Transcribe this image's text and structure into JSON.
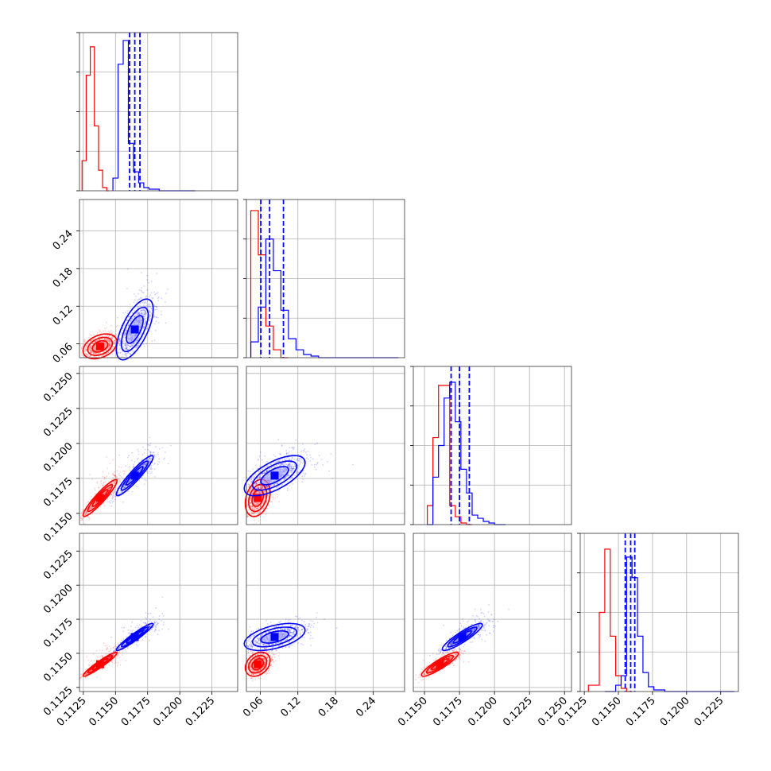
{
  "colors": {
    "red": "#ff0000",
    "blue": "#0000ff"
  },
  "chart_data": {
    "type": "corner",
    "grid": true,
    "series": [
      {
        "color": "#ff0000"
      },
      {
        "color": "#0000ff"
      }
    ],
    "params": [
      {
        "range": [
          0.1122,
          0.1245
        ],
        "ticks": [
          "0.1125",
          "0.1150",
          "0.1175",
          "0.1200",
          "0.1225"
        ],
        "tickvals": [
          0.1125,
          0.115,
          0.1175,
          0.12,
          0.1225
        ]
      },
      {
        "range": [
          0.038,
          0.29
        ],
        "ticks": [
          "0.06",
          "0.12",
          "0.18",
          "0.24"
        ],
        "tickvals": [
          0.06,
          0.12,
          0.18,
          0.24
        ]
      },
      {
        "range": [
          0.1142,
          0.1255
        ],
        "ticks": [
          "0.1150",
          "0.1175",
          "0.1200",
          "0.1225",
          "0.1250"
        ],
        "tickvals": [
          0.115,
          0.1175,
          0.12,
          0.1225,
          0.125
        ]
      },
      {
        "range": [
          0.1122,
          0.1238
        ],
        "ticks": [
          "0.1125",
          "0.1150",
          "0.1175",
          "0.1200",
          "0.1225"
        ],
        "tickvals": [
          0.1125,
          0.115,
          0.1175,
          0.12,
          0.1225
        ]
      }
    ],
    "histograms": [
      {
        "param": 0,
        "red": {
          "edges": [
            0.1124,
            0.11256,
            0.11272,
            0.11288,
            0.11304,
            0.1132,
            0.11336,
            0.11352,
            0.11368,
            0.11384,
            0.114,
            0.11416,
            0.11432,
            0.11448
          ],
          "counts": [
            0.19,
            0.19,
            0.73,
            0.73,
            0.91,
            0.91,
            0.41,
            0.41,
            0.13,
            0.13,
            0.02,
            0.02,
            0.0
          ]
        },
        "blue": {
          "edges": [
            0.1148,
            0.1152,
            0.1156,
            0.116,
            0.1164,
            0.1168,
            0.1172,
            0.1176,
            0.118,
            0.1184,
            0.1188,
            0.1192,
            0.1196,
            0.12,
            0.1204,
            0.1208,
            0.1212
          ],
          "counts": [
            0.08,
            0.8,
            0.95,
            0.3,
            0.12,
            0.05,
            0.02,
            0.01,
            0.01,
            0.0,
            0.0,
            0.0,
            0.0,
            0.0,
            0.0,
            0.0
          ]
        },
        "quantiles": [
          0.1161,
          0.1165,
          0.1169
        ]
      },
      {
        "param": 1,
        "red": {
          "edges": [
            0.045,
            0.057,
            0.069,
            0.081,
            0.093,
            0.105
          ],
          "counts": [
            0.93,
            0.65,
            0.2,
            0.05,
            0.0
          ]
        },
        "blue": {
          "edges": [
            0.045,
            0.057,
            0.069,
            0.081,
            0.093,
            0.105,
            0.117,
            0.129,
            0.141,
            0.153,
            0.165,
            0.2,
            0.24,
            0.28
          ],
          "counts": [
            0.1,
            0.32,
            0.75,
            0.55,
            0.3,
            0.12,
            0.05,
            0.02,
            0.01,
            0.0,
            0.0,
            0.0,
            0.0
          ]
        },
        "quantiles": [
          0.061,
          0.075,
          0.097
        ]
      },
      {
        "param": 2,
        "red": {
          "edges": [
            0.1152,
            0.1156,
            0.116,
            0.1164,
            0.1168,
            0.1172,
            0.1176,
            0.118,
            0.1184
          ],
          "counts": [
            0.12,
            0.55,
            0.88,
            0.88,
            0.12,
            0.05,
            0.01,
            0.0
          ]
        },
        "blue": {
          "edges": [
            0.1152,
            0.1156,
            0.116,
            0.1164,
            0.1168,
            0.1172,
            0.1176,
            0.118,
            0.1184,
            0.1188,
            0.1192,
            0.1196,
            0.12,
            0.1204,
            0.1208
          ],
          "counts": [
            0.0,
            0.3,
            0.5,
            0.8,
            0.9,
            0.65,
            0.35,
            0.2,
            0.06,
            0.04,
            0.02,
            0.01,
            0.0,
            0.0
          ]
        },
        "quantiles": [
          0.1169,
          0.1175,
          0.1182
        ]
      },
      {
        "param": 3,
        "red": {
          "edges": [
            0.1128,
            0.1132,
            0.1136,
            0.114,
            0.1144,
            0.1148,
            0.1152,
            0.1156,
            0.116
          ],
          "counts": [
            0.04,
            0.04,
            0.5,
            0.9,
            0.35,
            0.1,
            0.02,
            0.0
          ]
        },
        "blue": {
          "edges": [
            0.114,
            0.1144,
            0.1148,
            0.1152,
            0.1156,
            0.116,
            0.1164,
            0.1168,
            0.1172,
            0.1176,
            0.118,
            0.1184,
            0.1188,
            0.12,
            0.1235
          ],
          "counts": [
            0.0,
            0.0,
            0.04,
            0.1,
            0.85,
            0.72,
            0.35,
            0.12,
            0.03,
            0.01,
            0.01,
            0.0,
            0.0,
            0.0
          ]
        },
        "quantiles": [
          0.1155,
          0.1159,
          0.1162
        ]
      }
    ],
    "clouds": [
      {
        "row": 1,
        "col": 0,
        "red": {
          "mean": [
            0.1138,
            0.056
          ],
          "std": [
            0.0006,
            0.009
          ],
          "rho": 0.35
        },
        "blue": {
          "mean": [
            0.1165,
            0.083
          ],
          "std": [
            0.00065,
            0.022
          ],
          "rho": 0.65
        }
      },
      {
        "row": 2,
        "col": 0,
        "red": {
          "mean": [
            0.1138,
            0.1161
          ],
          "std": [
            0.0006,
            0.0006
          ],
          "rho": 0.93
        },
        "blue": {
          "mean": [
            0.1165,
            0.1177
          ],
          "std": [
            0.00065,
            0.00065
          ],
          "rho": 0.93
        }
      },
      {
        "row": 2,
        "col": 1,
        "red": {
          "mean": [
            0.056,
            0.1161
          ],
          "std": [
            0.009,
            0.0006
          ],
          "rho": 0.3
        },
        "blue": {
          "mean": [
            0.083,
            0.1177
          ],
          "std": [
            0.022,
            0.00065
          ],
          "rho": 0.65
        }
      },
      {
        "row": 3,
        "col": 0,
        "red": {
          "mean": [
            0.1138,
            0.1142
          ],
          "std": [
            0.0006,
            0.0004
          ],
          "rho": 0.95
        },
        "blue": {
          "mean": [
            0.1165,
            0.1162
          ],
          "std": [
            0.00065,
            0.00045
          ],
          "rho": 0.95
        }
      },
      {
        "row": 3,
        "col": 1,
        "red": {
          "mean": [
            0.056,
            0.1142
          ],
          "std": [
            0.009,
            0.0004
          ],
          "rho": 0.3
        },
        "blue": {
          "mean": [
            0.083,
            0.1162
          ],
          "std": [
            0.022,
            0.00045
          ],
          "rho": 0.5
        }
      },
      {
        "row": 3,
        "col": 2,
        "red": {
          "mean": [
            0.1161,
            0.1142
          ],
          "std": [
            0.0006,
            0.0004
          ],
          "rho": 0.9
        },
        "blue": {
          "mean": [
            0.1177,
            0.1162
          ],
          "std": [
            0.00065,
            0.00045
          ],
          "rho": 0.9
        }
      }
    ]
  }
}
